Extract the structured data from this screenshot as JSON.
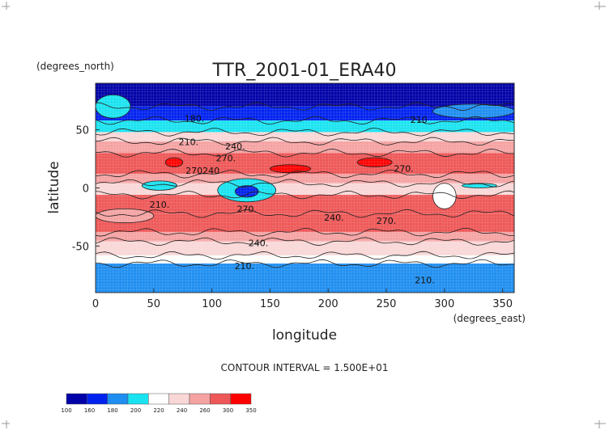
{
  "chart_data": {
    "type": "heatmap",
    "title": "TTR_2001-01_ERA40",
    "xlabel": "longitude",
    "ylabel": "latitude",
    "x_units": "(degrees_east)",
    "y_units": "(degrees_north)",
    "xlim": [
      0,
      360
    ],
    "ylim": [
      -90,
      90
    ],
    "x_ticks": [
      0,
      50,
      100,
      150,
      200,
      250,
      300,
      350
    ],
    "y_ticks": [
      50,
      0,
      -50
    ],
    "contour_interval_text": "CONTOUR INTERVAL = 1.500E+01",
    "colorbar": {
      "levels": [
        100,
        160,
        180,
        200,
        220,
        240,
        260,
        300,
        350
      ],
      "colors": [
        "#0000a8",
        "#0022ee",
        "#1e8ef0",
        "#19e3f0",
        "#ffffff",
        "#f9d7d7",
        "#f5a2a2",
        "#ee5757",
        "#ff0000"
      ]
    },
    "zonal_bands": [
      {
        "lat_top": 90,
        "lat_bottom": 70,
        "level": 0
      },
      {
        "lat_top": 70,
        "lat_bottom": 58,
        "level": 1
      },
      {
        "lat_top": 58,
        "lat_bottom": 48,
        "level": 3
      },
      {
        "lat_top": 48,
        "lat_bottom": 40,
        "level": 5
      },
      {
        "lat_top": 40,
        "lat_bottom": 30,
        "level": 6
      },
      {
        "lat_top": 30,
        "lat_bottom": 12,
        "level": 7
      },
      {
        "lat_top": 12,
        "lat_bottom": 4,
        "level": 6
      },
      {
        "lat_top": 4,
        "lat_bottom": -6,
        "level": 5
      },
      {
        "lat_top": -6,
        "lat_bottom": -22,
        "level": 7
      },
      {
        "lat_top": -22,
        "lat_bottom": -38,
        "level": 7
      },
      {
        "lat_top": -38,
        "lat_bottom": -46,
        "level": 6
      },
      {
        "lat_top": -46,
        "lat_bottom": -58,
        "level": 5
      },
      {
        "lat_top": -58,
        "lat_bottom": -65,
        "level": 4
      },
      {
        "lat_top": -65,
        "lat_bottom": -90,
        "level": 2
      }
    ],
    "patches": [
      {
        "lon": [
          60,
          75
        ],
        "lat": [
          18,
          26
        ],
        "level": 8
      },
      {
        "lon": [
          150,
          185
        ],
        "lat": [
          13,
          20
        ],
        "level": 8
      },
      {
        "lon": [
          225,
          255
        ],
        "lat": [
          18,
          26
        ],
        "level": 8
      },
      {
        "lon": [
          105,
          155
        ],
        "lat": [
          -12,
          8
        ],
        "level": 3
      },
      {
        "lon": [
          120,
          140
        ],
        "lat": [
          -8,
          2
        ],
        "level": 1
      },
      {
        "lon": [
          40,
          70
        ],
        "lat": [
          -2,
          6
        ],
        "level": 3
      },
      {
        "lon": [
          290,
          310
        ],
        "lat": [
          -18,
          4
        ],
        "level": 4
      },
      {
        "lon": [
          315,
          345
        ],
        "lat": [
          0,
          4
        ],
        "level": 3
      },
      {
        "lon": [
          0,
          50
        ],
        "lat": [
          -30,
          -18
        ],
        "level": 6
      },
      {
        "lon": [
          0,
          30
        ],
        "lat": [
          60,
          80
        ],
        "level": 3
      },
      {
        "lon": [
          290,
          360
        ],
        "lat": [
          60,
          72
        ],
        "level": 2
      }
    ],
    "contour_labels": [
      {
        "text": "180.",
        "lon": 85,
        "lat": 57
      },
      {
        "text": "210.",
        "lon": 80,
        "lat": 37
      },
      {
        "text": "240.",
        "lon": 120,
        "lat": 33
      },
      {
        "text": "270.",
        "lon": 112,
        "lat": 23
      },
      {
        "text": "270240",
        "lon": 92,
        "lat": 12
      },
      {
        "text": "210",
        "lon": 278,
        "lat": 56
      },
      {
        "text": "270.",
        "lon": 265,
        "lat": 14
      },
      {
        "text": "210.",
        "lon": 55,
        "lat": -17
      },
      {
        "text": "270.",
        "lon": 130,
        "lat": -21
      },
      {
        "text": "240.",
        "lon": 205,
        "lat": -28
      },
      {
        "text": "270.",
        "lon": 250,
        "lat": -31
      },
      {
        "text": "240.",
        "lon": 140,
        "lat": -50
      },
      {
        "text": "210.",
        "lon": 128,
        "lat": -70
      },
      {
        "text": "210.",
        "lon": 283,
        "lat": -82
      }
    ]
  }
}
